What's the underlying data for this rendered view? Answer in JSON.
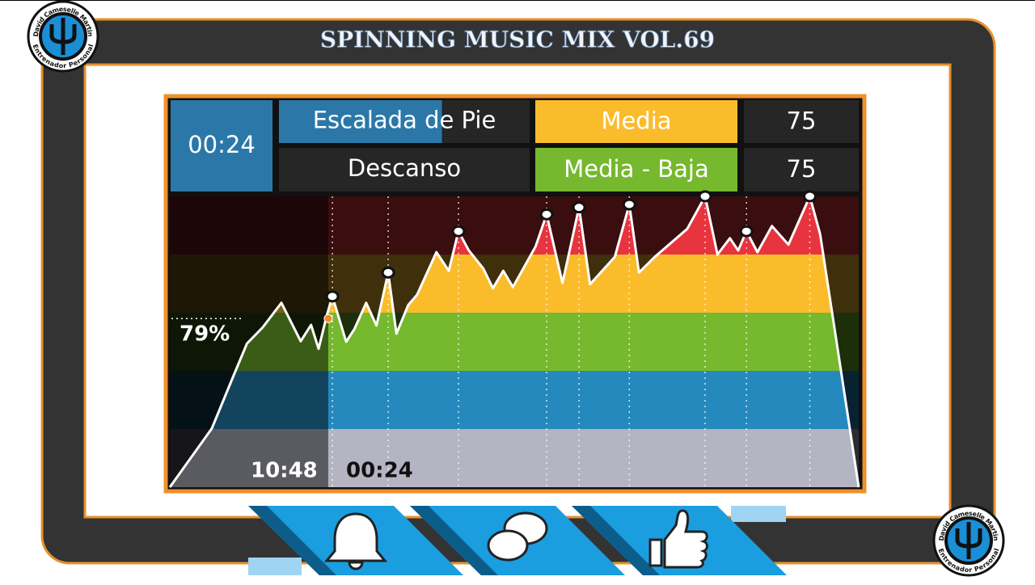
{
  "title": "SPINNING MUSIC MIX VOL.69",
  "logo": {
    "name": "David Cameselle Martin",
    "subtitle": "Entrenador Personal"
  },
  "header": {
    "segment_time": "00:24",
    "segment_progress_pct": 65,
    "rows": [
      {
        "segment": "Escalada de Pie",
        "intensity": "Media",
        "intensity_color": "#fbbc2c",
        "rpm": 75
      },
      {
        "segment": "Descanso",
        "intensity": "Media - Baja",
        "intensity_color": "#76b82e",
        "rpm": 75
      }
    ]
  },
  "profile": {
    "intensity_range": [
      50,
      100
    ],
    "zones": [
      {
        "min": 50,
        "max": 60,
        "color": "#b4b4c2"
      },
      {
        "min": 60,
        "max": 70,
        "color": "#2589bd"
      },
      {
        "min": 70,
        "max": 80,
        "color": "#76b82e"
      },
      {
        "min": 80,
        "max": 90,
        "color": "#fbbc2c"
      },
      {
        "min": 90,
        "max": 100,
        "color": "#e8343f"
      }
    ],
    "time_pct": [
      0,
      6.1,
      9.4,
      11.2,
      13.5,
      16.2,
      19.0,
      20.5,
      21.6,
      22.8,
      23.6,
      25.6,
      26.8,
      28.5,
      30.0,
      31.7,
      32.9,
      34.6,
      35.9,
      38.7,
      40.5,
      41.9,
      43.4,
      45.5,
      46.9,
      48.4,
      49.8,
      53.1,
      54.7,
      57.0,
      59.4,
      61.0,
      64.6,
      66.7,
      68.1,
      70.4,
      75.1,
      77.7,
      79.5,
      81.3,
      82.5,
      83.7,
      85.3,
      87.4,
      89.8,
      92.9,
      94.4,
      100
    ],
    "intensity_pct": [
      50,
      60.1,
      69.6,
      74.7,
      77.5,
      81.7,
      75.1,
      77.9,
      73.8,
      79.6,
      82.8,
      75.0,
      77.2,
      81.7,
      77.8,
      86.9,
      76.4,
      81.3,
      83.1,
      90.4,
      87.2,
      94.0,
      90.7,
      87.6,
      84.2,
      87.2,
      84.4,
      91.4,
      96.9,
      85.1,
      98.1,
      84.9,
      89.6,
      98.6,
      86.9,
      89.6,
      94.4,
      100,
      90,
      92.8,
      90.7,
      94.0,
      90.4,
      94.9,
      91.7,
      100,
      93.5,
      50
    ],
    "markers_pct": [
      23.6,
      31.7,
      41.9,
      54.7,
      59.4,
      66.7,
      77.7,
      83.7,
      92.9
    ],
    "position_pct": 23,
    "current_intensity": {
      "value": 79,
      "label": "79%"
    },
    "elapsed": "10:48",
    "remaining": "00:24"
  }
}
